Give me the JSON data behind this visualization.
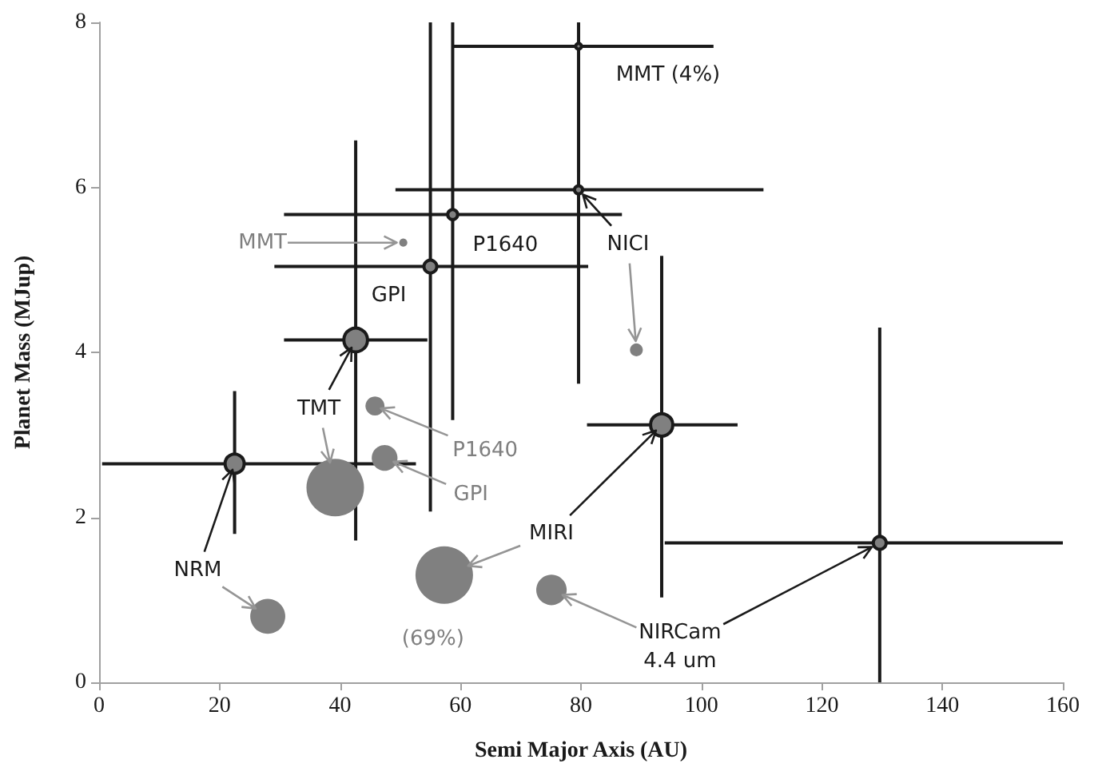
{
  "chart_data": {
    "type": "bubble",
    "xlabel": "Semi Major Axis (AU)",
    "ylabel": "Planet Mass (MJup)",
    "xlim": [
      0,
      160
    ],
    "xticks": [
      0,
      20,
      40,
      60,
      80,
      100,
      120,
      140,
      160
    ],
    "ylim": [
      0,
      8
    ],
    "yticks": [
      0,
      2,
      4,
      6,
      8
    ],
    "series": [
      {
        "color": "#808080",
        "x": [
          50.5,
          89.2,
          45.8,
          47.4,
          39.2,
          28.0,
          57.3,
          75.1
        ],
        "values": [
          5.33,
          4.03,
          3.35,
          2.72,
          2.36,
          0.8,
          1.3,
          1.12
        ],
        "sizes": [
          0.02,
          0.05,
          0.11,
          0.2,
          1,
          0.37,
          1,
          0.28
        ]
      },
      {
        "color": "#808080",
        "x": [
          79.6,
          79.6,
          58.7,
          55.0,
          42.6,
          22.5,
          93.4,
          129.6
        ],
        "values": [
          7.71,
          5.97,
          5.67,
          5.04,
          4.15,
          2.65,
          3.12,
          1.69
        ],
        "sizes": [
          0.01,
          0.02,
          0.03,
          0.05,
          0.17,
          0.11,
          0.15,
          0.05
        ],
        "errors": [
          [
            6.18,
            8
          ],
          [
            3.62,
            8
          ],
          [
            3.18,
            8
          ],
          [
            2.07,
            8
          ],
          [
            1.72,
            6.57
          ],
          [
            1.8,
            3.53
          ],
          [
            1.03,
            5.17
          ],
          [
            0,
            4.3
          ]
        ],
        "xerrors": [
          [
            58.7,
            102
          ],
          [
            49.2,
            110.3
          ],
          [
            30.7,
            86.8
          ],
          [
            29.1,
            81.2
          ],
          [
            30.7,
            54.5
          ],
          [
            0.5,
            52.6
          ],
          [
            81,
            106
          ],
          [
            93.9,
            160
          ]
        ]
      }
    ],
    "annotations": [
      {
        "text": "MMT (4%)",
        "x": 79.6,
        "y": 7.71
      },
      {
        "text": "NICI",
        "x": 79.6,
        "y": 5.97
      },
      {
        "text": "P1640",
        "x": 58.7,
        "y": 5.67
      },
      {
        "text": "GPI",
        "x": 55.0,
        "y": 5.04
      },
      {
        "text": "MMT",
        "x": 50.5,
        "y": 5.33
      },
      {
        "text": "TMT",
        "x": 42.6,
        "y": 4.15
      },
      {
        "text": "P1640",
        "x": 45.8,
        "y": 3.35
      },
      {
        "text": "GPI",
        "x": 47.4,
        "y": 2.72
      },
      {
        "text": "NRM",
        "x": 22.5,
        "y": 2.65
      },
      {
        "text": "MIRI",
        "x": 93.4,
        "y": 3.12
      },
      {
        "text": "(69%)",
        "x": 57.3,
        "y": 1.3
      },
      {
        "text": "NIRCam\n4.4 um",
        "x": 129.6,
        "y": 1.69
      }
    ]
  }
}
